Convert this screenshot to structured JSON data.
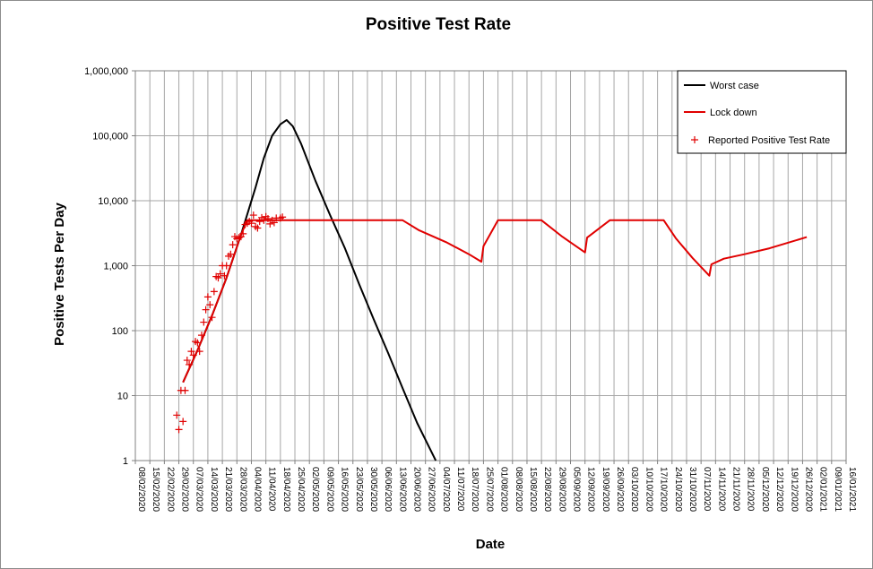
{
  "chart_data": {
    "type": "line",
    "title": "Positive Test Rate",
    "xlabel": "Date",
    "ylabel": "Positive Tests Per Day",
    "yscale": "log",
    "ylim": [
      1,
      1000000
    ],
    "xlim": [
      "2020-02-08",
      "2021-01-16"
    ],
    "grid": true,
    "legend_position": "top-right",
    "y_ticks": [
      "1",
      "10",
      "100",
      "1,000",
      "10,000",
      "100,000",
      "1,000,000"
    ],
    "x_ticks": [
      "08/02/2020",
      "15/02/2020",
      "22/02/2020",
      "29/02/2020",
      "07/03/2020",
      "14/03/2020",
      "21/03/2020",
      "28/03/2020",
      "04/04/2020",
      "11/04/2020",
      "18/04/2020",
      "25/04/2020",
      "02/05/2020",
      "09/05/2020",
      "16/05/2020",
      "23/05/2020",
      "30/05/2020",
      "06/06/2020",
      "13/06/2020",
      "20/06/2020",
      "27/06/2020",
      "04/07/2020",
      "11/07/2020",
      "18/07/2020",
      "25/07/2020",
      "01/08/2020",
      "08/08/2020",
      "15/08/2020",
      "22/08/2020",
      "29/08/2020",
      "05/09/2020",
      "12/09/2020",
      "19/09/2020",
      "26/09/2020",
      "03/10/2020",
      "10/10/2020",
      "17/10/2020",
      "24/10/2020",
      "31/10/2020",
      "07/11/2020",
      "14/11/2020",
      "21/11/2020",
      "28/11/2020",
      "05/12/2020",
      "12/12/2020",
      "19/12/2020",
      "26/12/2020",
      "02/01/2021",
      "09/01/2021",
      "16/01/2021"
    ],
    "series": [
      {
        "name": "Worst case",
        "color": "#000000",
        "style": "line",
        "points": [
          [
            "2020-03-02",
            16
          ],
          [
            "2020-03-09",
            50
          ],
          [
            "2020-03-16",
            170
          ],
          [
            "2020-03-23",
            650
          ],
          [
            "2020-03-30",
            3000
          ],
          [
            "2020-04-06",
            16000
          ],
          [
            "2020-04-10",
            45000
          ],
          [
            "2020-04-14",
            100000
          ],
          [
            "2020-04-18",
            150000
          ],
          [
            "2020-04-21",
            175000
          ],
          [
            "2020-04-24",
            140000
          ],
          [
            "2020-04-28",
            75000
          ],
          [
            "2020-05-05",
            20000
          ],
          [
            "2020-05-12",
            6000
          ],
          [
            "2020-05-19",
            1900
          ],
          [
            "2020-05-26",
            520
          ],
          [
            "2020-06-02",
            150
          ],
          [
            "2020-06-09",
            45
          ],
          [
            "2020-06-16",
            13
          ],
          [
            "2020-06-23",
            3.8
          ],
          [
            "2020-07-02",
            1
          ]
        ]
      },
      {
        "name": "Lock down",
        "color": "#e00000",
        "style": "line",
        "points": [
          [
            "2020-03-02",
            16
          ],
          [
            "2020-03-09",
            50
          ],
          [
            "2020-03-16",
            170
          ],
          [
            "2020-03-23",
            650
          ],
          [
            "2020-03-30",
            3000
          ],
          [
            "2020-04-02",
            5000
          ],
          [
            "2020-06-16",
            5000
          ],
          [
            "2020-06-24",
            3500
          ],
          [
            "2020-07-07",
            2300
          ],
          [
            "2020-07-18",
            1500
          ],
          [
            "2020-07-24",
            1150
          ],
          [
            "2020-07-25",
            2000
          ],
          [
            "2020-08-01",
            5000
          ],
          [
            "2020-08-22",
            5000
          ],
          [
            "2020-09-01",
            2800
          ],
          [
            "2020-09-12",
            1600
          ],
          [
            "2020-09-13",
            2700
          ],
          [
            "2020-09-16",
            3200
          ],
          [
            "2020-09-24",
            5000
          ],
          [
            "2020-10-20",
            5000
          ],
          [
            "2020-10-26",
            2600
          ],
          [
            "2020-11-03",
            1300
          ],
          [
            "2020-11-11",
            700
          ],
          [
            "2020-11-12",
            1050
          ],
          [
            "2020-11-18",
            1280
          ],
          [
            "2020-11-28",
            1500
          ],
          [
            "2020-12-10",
            1850
          ],
          [
            "2020-12-28",
            2750
          ]
        ]
      },
      {
        "name": "Reported Positive Test Rate",
        "color": "#e00000",
        "style": "plus-markers",
        "points": [
          [
            "2020-02-28",
            5
          ],
          [
            "2020-02-29",
            3
          ],
          [
            "2020-03-01",
            12
          ],
          [
            "2020-03-02",
            4
          ],
          [
            "2020-03-03",
            12
          ],
          [
            "2020-03-04",
            35
          ],
          [
            "2020-03-05",
            30
          ],
          [
            "2020-03-06",
            48
          ],
          [
            "2020-03-07",
            42
          ],
          [
            "2020-03-08",
            68
          ],
          [
            "2020-03-09",
            65
          ],
          [
            "2020-03-10",
            48
          ],
          [
            "2020-03-11",
            85
          ],
          [
            "2020-03-12",
            135
          ],
          [
            "2020-03-13",
            210
          ],
          [
            "2020-03-14",
            330
          ],
          [
            "2020-03-15",
            250
          ],
          [
            "2020-03-16",
            160
          ],
          [
            "2020-03-17",
            400
          ],
          [
            "2020-03-18",
            680
          ],
          [
            "2020-03-19",
            650
          ],
          [
            "2020-03-20",
            750
          ],
          [
            "2020-03-21",
            1000
          ],
          [
            "2020-03-22",
            700
          ],
          [
            "2020-03-23",
            1000
          ],
          [
            "2020-03-24",
            1400
          ],
          [
            "2020-03-25",
            1500
          ],
          [
            "2020-03-26",
            2100
          ],
          [
            "2020-03-27",
            2800
          ],
          [
            "2020-03-28",
            2600
          ],
          [
            "2020-03-29",
            2700
          ],
          [
            "2020-03-30",
            2800
          ],
          [
            "2020-03-31",
            3100
          ],
          [
            "2020-04-01",
            4300
          ],
          [
            "2020-04-02",
            4500
          ],
          [
            "2020-04-03",
            4800
          ],
          [
            "2020-04-04",
            4500
          ],
          [
            "2020-04-05",
            6000
          ],
          [
            "2020-04-06",
            4000
          ],
          [
            "2020-04-07",
            3800
          ],
          [
            "2020-04-08",
            4800
          ],
          [
            "2020-04-09",
            5500
          ],
          [
            "2020-04-10",
            5000
          ],
          [
            "2020-04-11",
            5700
          ],
          [
            "2020-04-12",
            5300
          ],
          [
            "2020-04-13",
            4400
          ],
          [
            "2020-04-14",
            5000
          ],
          [
            "2020-04-15",
            4600
          ],
          [
            "2020-04-16",
            5400
          ],
          [
            "2020-04-18",
            5400
          ],
          [
            "2020-04-19",
            5600
          ]
        ]
      }
    ]
  }
}
